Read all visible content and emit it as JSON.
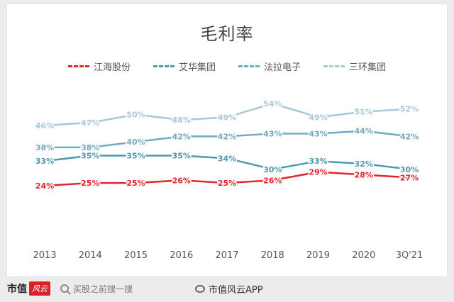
{
  "chart_data": {
    "type": "line",
    "title": "毛利率",
    "categories": [
      "2013",
      "2014",
      "2015",
      "2016",
      "2017",
      "2018",
      "2019",
      "2020",
      "3Q'21"
    ],
    "series": [
      {
        "name": "江海股份",
        "color": "#e3262b",
        "values": [
          24,
          25,
          25,
          26,
          25,
          26,
          29,
          28,
          27
        ]
      },
      {
        "name": "艾华集团",
        "color": "#4e98b2",
        "values": [
          33,
          35,
          35,
          35,
          34,
          30,
          33,
          32,
          30
        ]
      },
      {
        "name": "法拉电子",
        "color": "#6fabc1",
        "values": [
          38,
          38,
          40,
          42,
          42,
          43,
          43,
          44,
          42
        ]
      },
      {
        "name": "三环集团",
        "color": "#a7c8d8",
        "values": [
          46,
          47,
          50,
          48,
          49,
          54,
          49,
          51,
          52
        ]
      }
    ],
    "value_suffix": "%",
    "grid": false,
    "legend": "top"
  },
  "footer": {
    "brand": "市值",
    "brand_logo": "风云",
    "search_text": "买股之前搜一搜",
    "weibo_text": "市值风云APP"
  }
}
